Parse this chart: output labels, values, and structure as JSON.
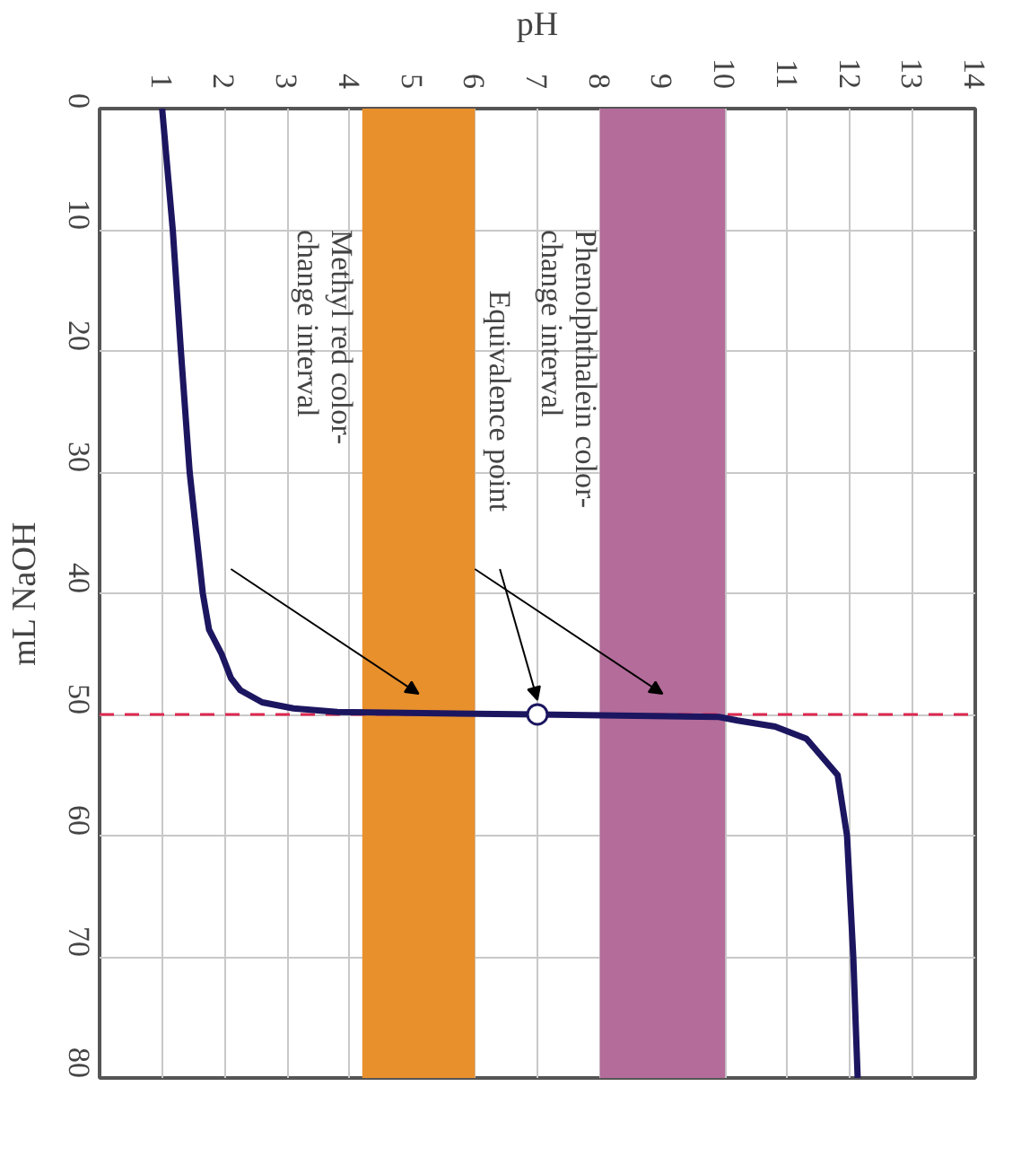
{
  "chart_data": {
    "type": "line",
    "xlabel": "pH",
    "ylabel": "mL NaOH",
    "series": [
      {
        "color": "#1c1660",
        "x": [
          1.0,
          1.17,
          1.3,
          1.44,
          1.65,
          1.75,
          1.95,
          2.1,
          2.25,
          2.6,
          3.1,
          3.8,
          7.0,
          9.9,
          10.2,
          10.8,
          11.3,
          11.8,
          11.95,
          12.05,
          12.12
        ],
        "values": [
          0,
          10,
          20,
          30,
          40,
          43,
          45,
          47,
          48,
          49,
          49.5,
          49.8,
          50,
          50.2,
          50.5,
          51,
          52,
          55,
          60,
          70,
          80
        ]
      },
      {
        "type": "scatter",
        "color": "#ffffff",
        "marker": "circle",
        "x": [
          7
        ],
        "values": [
          50
        ]
      }
    ],
    "xlim": [
      0,
      14
    ],
    "xticks": [
      1,
      2,
      3,
      4,
      5,
      6,
      7,
      8,
      9,
      10,
      11,
      12,
      13,
      14
    ],
    "ylim": [
      80,
      0
    ],
    "yticks": [
      0,
      10,
      20,
      30,
      40,
      50,
      60,
      70,
      80
    ],
    "grid": true,
    "bands": [
      {
        "axis": "x",
        "from": 4.2,
        "to": 6.0,
        "label": "Methyl red color-\nchange interval",
        "color": "#e8902c"
      },
      {
        "axis": "x",
        "from": 8.0,
        "to": 10.0,
        "label": "Phenolphthalein color-\nchange interval",
        "color": "#b46c9a"
      }
    ],
    "ref_lines": [
      {
        "axis": "y",
        "value": 50,
        "color": "#dc2850",
        "line_style": "dashed"
      }
    ],
    "annotations": [
      "Equivalence point"
    ]
  }
}
